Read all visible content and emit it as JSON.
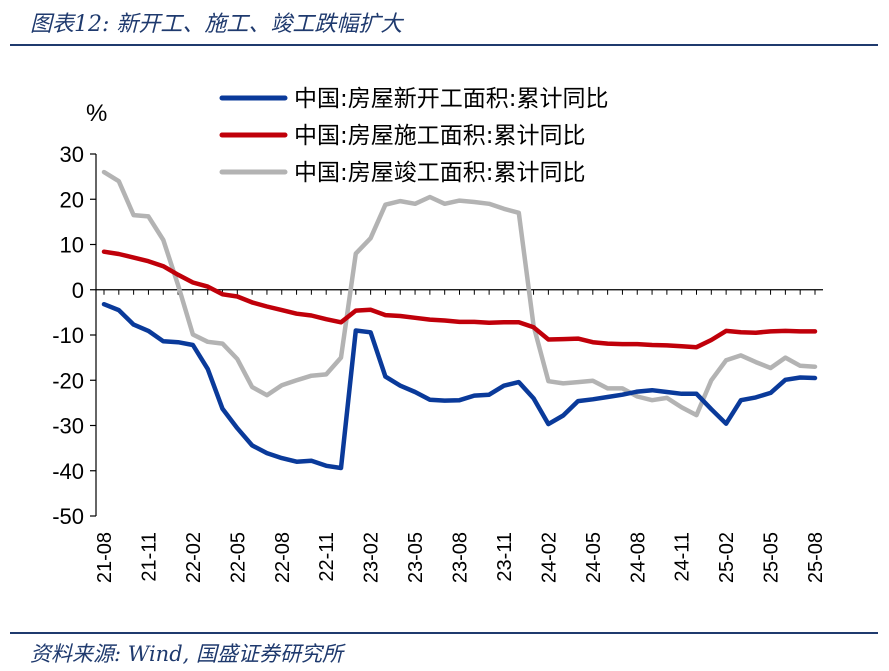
{
  "header": {
    "title": "图表12: 新开工、施工、竣工跌幅扩大"
  },
  "footer": {
    "source": "资料来源: Wind, 国盛证券研究所"
  },
  "chart_data": {
    "type": "line",
    "ylabel": "%",
    "ylim": [
      -50,
      30
    ],
    "yticks": [
      30,
      20,
      10,
      0,
      -10,
      -20,
      -30,
      -40,
      -50
    ],
    "x": [
      "21-08",
      "21-09",
      "21-10",
      "21-11",
      "21-12",
      "22-01",
      "22-02",
      "22-03",
      "22-04",
      "22-05",
      "22-06",
      "22-07",
      "22-08",
      "22-09",
      "22-10",
      "22-11",
      "22-12",
      "23-01",
      "23-02",
      "23-03",
      "23-04",
      "23-05",
      "23-06",
      "23-07",
      "23-08",
      "23-09",
      "23-10",
      "23-11",
      "23-12",
      "24-01",
      "24-02",
      "24-03",
      "24-04",
      "24-05",
      "24-06",
      "24-07",
      "24-08",
      "24-09",
      "24-10",
      "24-11",
      "24-12",
      "25-01",
      "25-02",
      "25-03",
      "25-04",
      "25-05",
      "25-06",
      "25-07",
      "25-08"
    ],
    "xticks": [
      "21-08",
      "21-11",
      "22-02",
      "22-05",
      "22-08",
      "22-11",
      "23-02",
      "23-05",
      "23-08",
      "23-11",
      "24-02",
      "24-05",
      "24-08",
      "24-11",
      "25-02",
      "25-05",
      "25-08"
    ],
    "legend_position": "top",
    "series": [
      {
        "name": "中国:房屋新开工面积:累计同比",
        "color": "#0a3a9a",
        "values": [
          -3.2,
          -4.5,
          -7.7,
          -9.1,
          -11.4,
          -11.6,
          -12.2,
          -17.5,
          -26.3,
          -30.6,
          -34.4,
          -36.1,
          -37.2,
          -38.0,
          -37.8,
          -38.9,
          -39.4,
          -9.0,
          -9.4,
          -19.2,
          -21.2,
          -22.6,
          -24.3,
          -24.5,
          -24.4,
          -23.4,
          -23.2,
          -21.2,
          -20.4,
          -24.0,
          -29.7,
          -27.8,
          -24.6,
          -24.2,
          -23.7,
          -23.2,
          -22.5,
          -22.2,
          -22.6,
          -23.0,
          -23.0,
          -26.4,
          -29.6,
          -24.4,
          -23.8,
          -22.8,
          -19.9,
          -19.4,
          -19.5
        ]
      },
      {
        "name": "中国:房屋施工面积:累计同比",
        "color": "#c0000a",
        "values": [
          8.4,
          7.9,
          7.1,
          6.3,
          5.2,
          3.3,
          1.6,
          0.7,
          -1.0,
          -1.5,
          -2.8,
          -3.7,
          -4.5,
          -5.3,
          -5.7,
          -6.5,
          -7.2,
          -4.6,
          -4.4,
          -5.6,
          -5.8,
          -6.2,
          -6.6,
          -6.8,
          -7.1,
          -7.1,
          -7.3,
          -7.2,
          -7.2,
          -8.3,
          -11.0,
          -10.9,
          -10.8,
          -11.6,
          -11.9,
          -12.0,
          -12.0,
          -12.2,
          -12.3,
          -12.5,
          -12.7,
          -11.1,
          -9.1,
          -9.4,
          -9.5,
          -9.2,
          -9.1,
          -9.2,
          -9.2
        ]
      },
      {
        "name": "中国:房屋竣工面积:累计同比",
        "color": "#b3b3b3",
        "values": [
          26.0,
          24.0,
          16.5,
          16.2,
          11.0,
          1.0,
          -9.9,
          -11.5,
          -11.9,
          -15.3,
          -21.5,
          -23.3,
          -21.1,
          -20.0,
          -19.0,
          -18.7,
          -15.0,
          8.0,
          11.4,
          18.8,
          19.6,
          19.0,
          20.5,
          19.0,
          19.7,
          19.4,
          19.0,
          17.9,
          17.0,
          -8.0,
          -20.2,
          -20.7,
          -20.4,
          -20.1,
          -21.8,
          -21.8,
          -23.6,
          -24.4,
          -23.9,
          -26.0,
          -27.7,
          -20.0,
          -15.6,
          -14.5,
          -16.0,
          -17.3,
          -15.0,
          -16.8,
          -17.0
        ]
      }
    ]
  }
}
